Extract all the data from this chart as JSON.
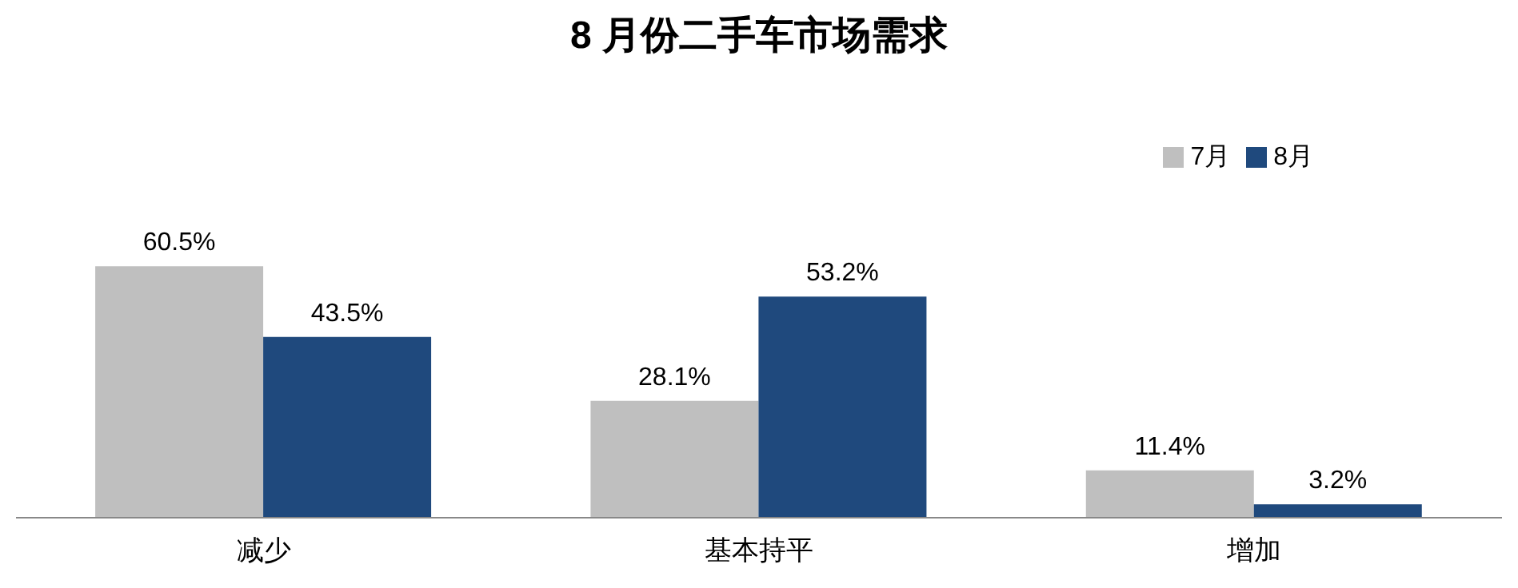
{
  "chart_data": {
    "type": "bar",
    "title": "8 月份二手车市场需求",
    "categories": [
      "减少",
      "基本持平",
      "增加"
    ],
    "series": [
      {
        "name": "7月",
        "color": "#bfbfbf",
        "values": [
          60.5,
          28.1,
          11.4
        ],
        "value_labels": [
          "60.5%",
          "28.1%",
          "11.4%"
        ]
      },
      {
        "name": "8月",
        "color": "#1f497d",
        "values": [
          43.5,
          53.2,
          3.2
        ],
        "value_labels": [
          "43.5%",
          "53.2%",
          "3.2%"
        ]
      }
    ],
    "legend": "top right",
    "grid": false
  }
}
